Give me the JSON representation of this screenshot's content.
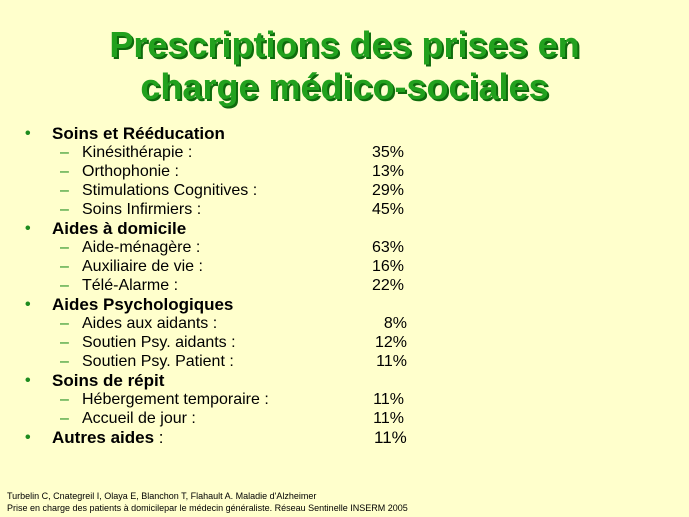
{
  "title": {
    "line1": "Prescriptions des prises en",
    "line2": "charge médico-sociales"
  },
  "colors": {
    "background": "#FFFFCC",
    "title": "#22A11E",
    "bullet": "#1E8C1E"
  },
  "categories": [
    {
      "label": "Soins et Rééducation",
      "items": [
        {
          "label": "Kinésithérapie  :",
          "value": "35%"
        },
        {
          "label": "Orthophonie :",
          "value": "13%"
        },
        {
          "label": "Stimulations Cognitives :",
          "value": "29%"
        },
        {
          "label": "Soins Infirmiers :",
          "value": "45%"
        }
      ]
    },
    {
      "label": "Aides à domicile",
      "items": [
        {
          "label": "Aide-ménagère :",
          "value": "63%"
        },
        {
          "label": "Auxiliaire de vie :",
          "value": "16%"
        },
        {
          "label": "Télé-Alarme :",
          "value": "22%"
        }
      ]
    },
    {
      "label": "Aides Psychologiques",
      "items": [
        {
          "label": "Aides aux aidants :",
          "value": "8%"
        },
        {
          "label": "Soutien Psy. aidants :",
          "value": "12%"
        },
        {
          "label": "Soutien Psy. Patient :",
          "value": "11%"
        }
      ]
    },
    {
      "label": "Soins de répit",
      "items": [
        {
          "label": "Hébergement temporaire :",
          "value": "11%"
        },
        {
          "label": "Accueil de jour :",
          "value": "11%"
        }
      ]
    },
    {
      "label": "Autres aides",
      "suffix": " :",
      "value": "11%",
      "items": []
    }
  ],
  "source": {
    "line1": "Turbelin C, Cnategreil I, Olaya E, Blanchon T, Flahault A. Maladie d'Alzheimer",
    "line2": "Prise en charge des patients à domicilepar le médecin généraliste. Réseau Sentinelle INSERM 2005"
  }
}
